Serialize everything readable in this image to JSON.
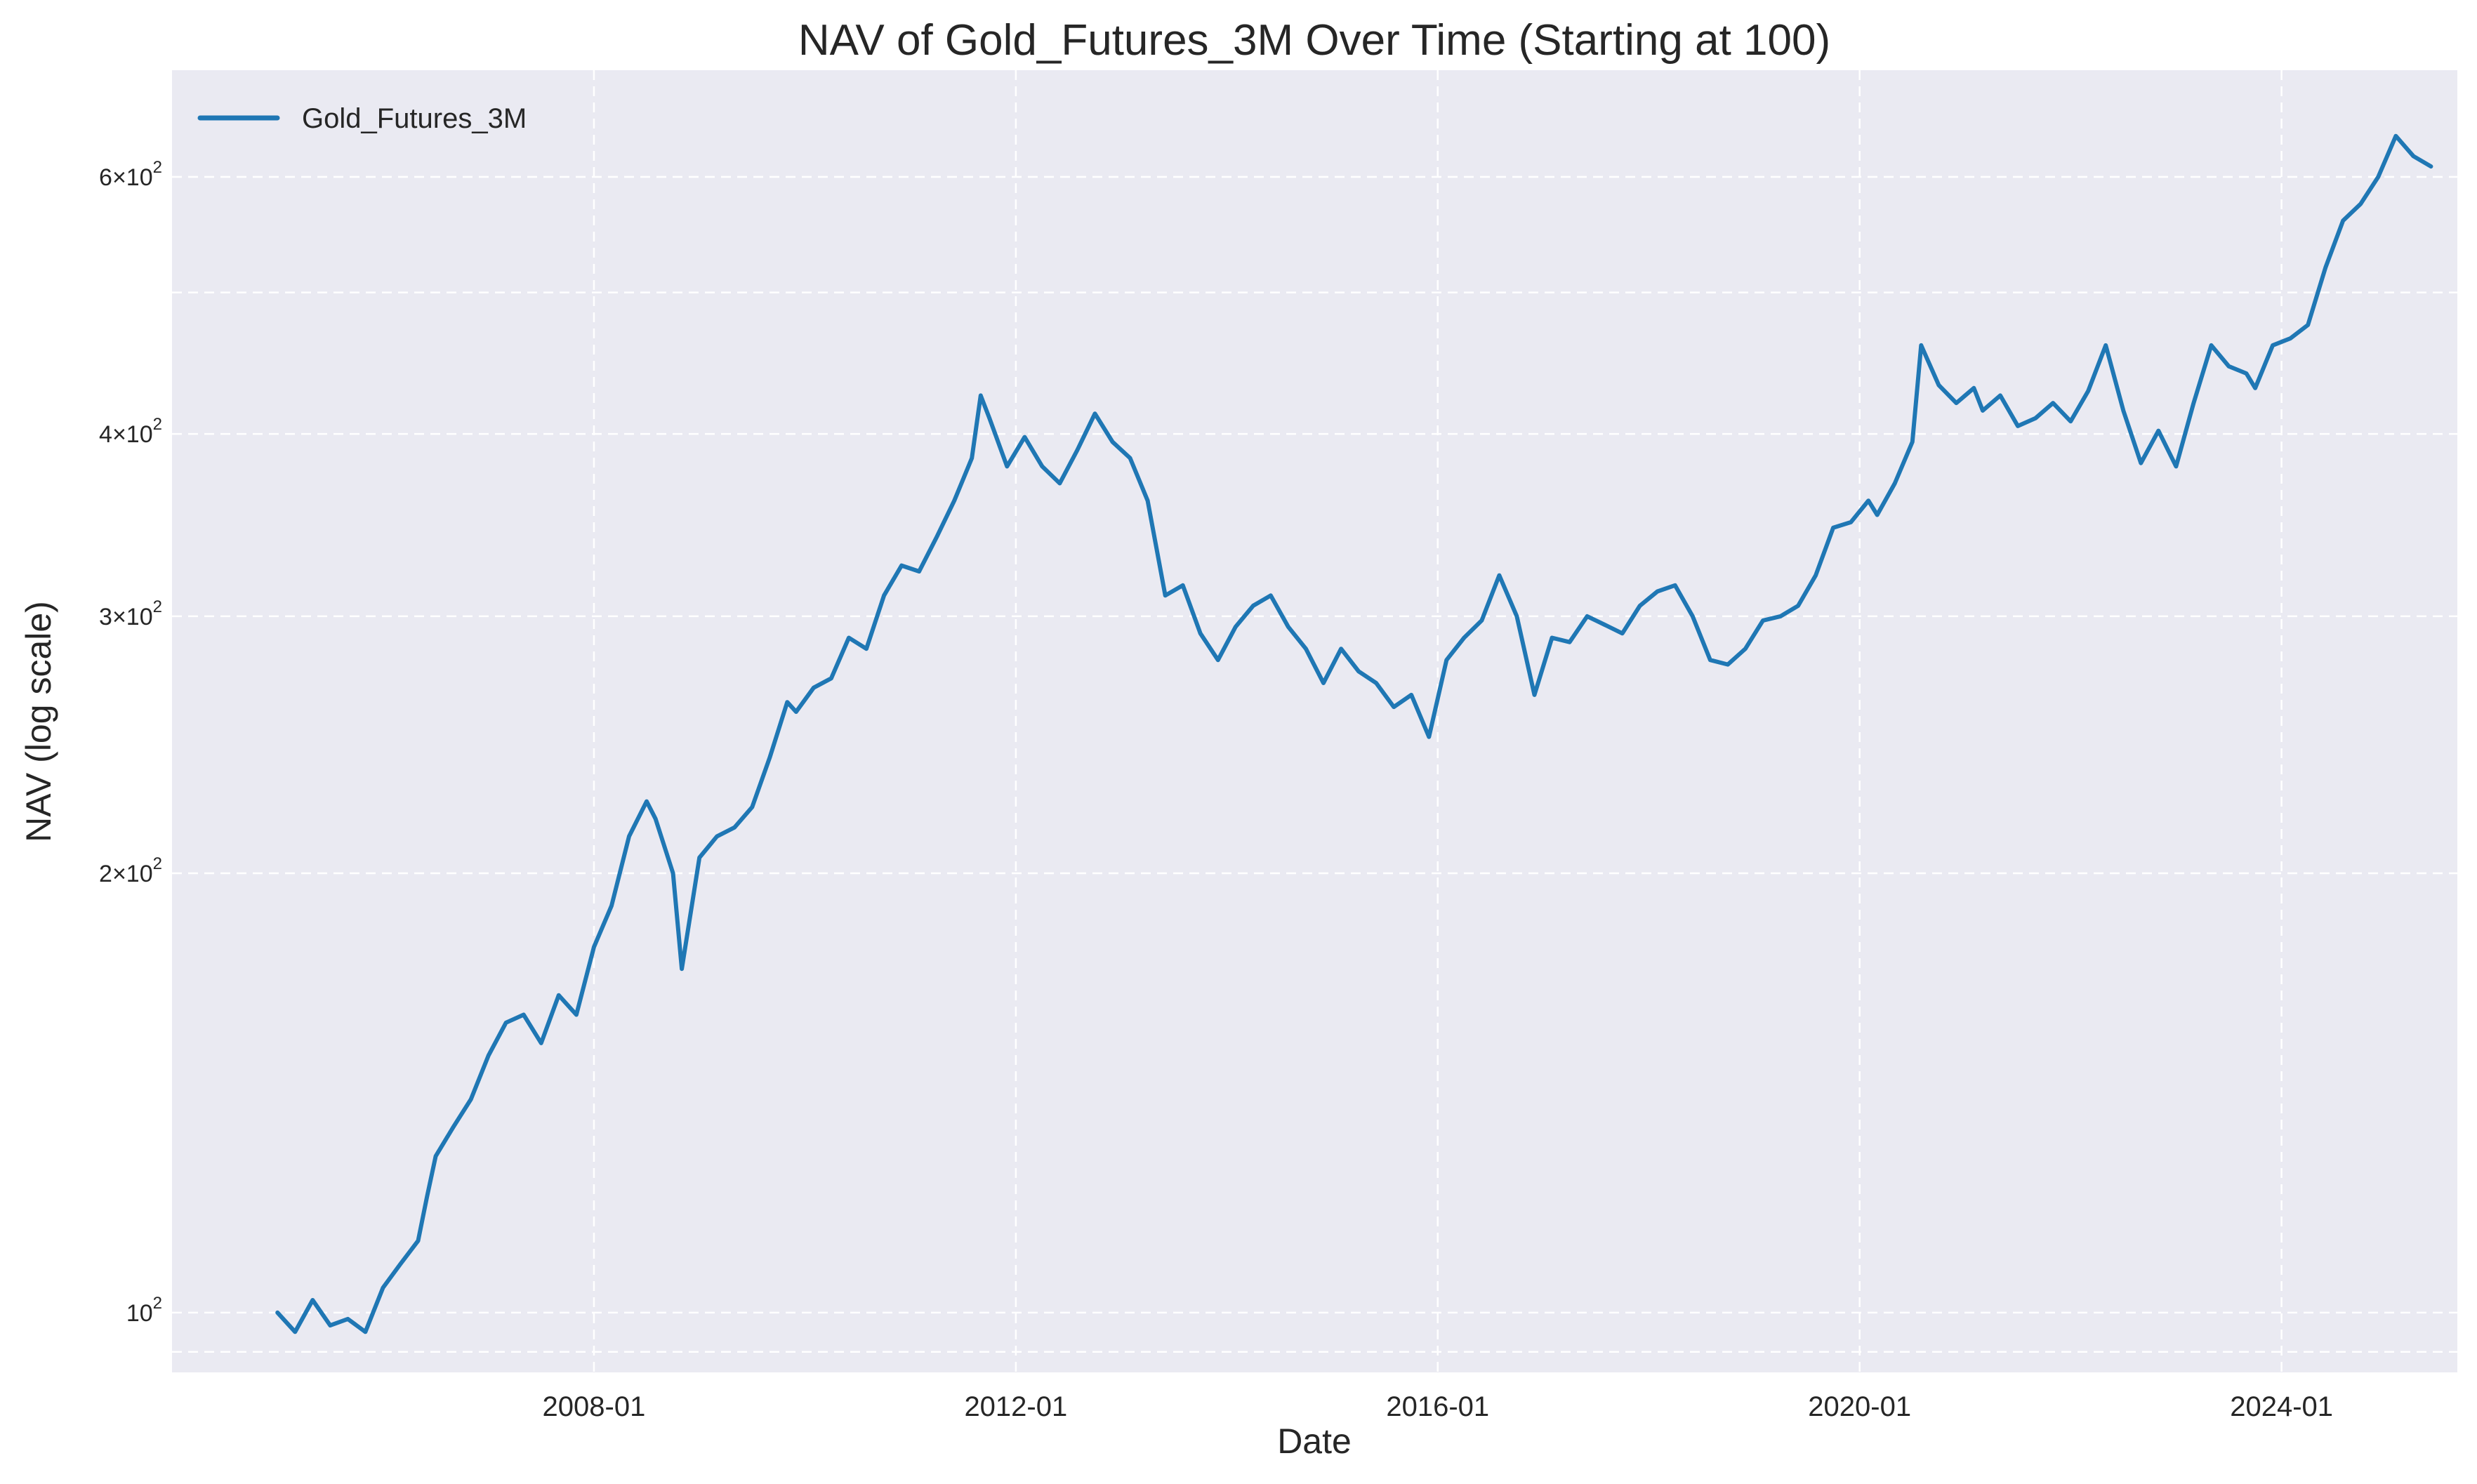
{
  "chart_data": {
    "type": "line",
    "title": "NAV of Gold_Futures_3M Over Time (Starting at 100)",
    "xlabel": "Date",
    "ylabel": "NAV (log scale)",
    "y_scale": "log",
    "ylim": [
      91,
      710
    ],
    "xlim": [
      "2004-01-01",
      "2025-09-01"
    ],
    "grid": true,
    "legend_position": "top-left",
    "x_ticks": [
      "2008-01",
      "2012-01",
      "2016-01",
      "2020-01",
      "2024-01"
    ],
    "y_ticks": [
      {
        "value": 100,
        "base": "10",
        "exp": "2"
      },
      {
        "value": 200,
        "base": "2×10",
        "exp": "2"
      },
      {
        "value": 300,
        "base": "3×10",
        "exp": "2"
      },
      {
        "value": 400,
        "base": "4×10",
        "exp": "2"
      },
      {
        "value": 600,
        "base": "6×10",
        "exp": "2"
      }
    ],
    "y_minor_gridlines": [
      500,
      94
    ],
    "colors": {
      "line": "#1f77b4",
      "plot_background": "#eaeaf2",
      "grid": "#ffffff",
      "text": "#262626"
    },
    "series": [
      {
        "name": "Gold_Futures_3M",
        "x": [
          "2005-01",
          "2005-03",
          "2005-05",
          "2005-07",
          "2005-09",
          "2005-11",
          "2006-01",
          "2006-03",
          "2006-05",
          "2006-06",
          "2006-07",
          "2006-09",
          "2006-11",
          "2007-01",
          "2007-03",
          "2007-05",
          "2007-07",
          "2007-09",
          "2007-11",
          "2008-01",
          "2008-03",
          "2008-05",
          "2008-07",
          "2008-08",
          "2008-10",
          "2008-11",
          "2009-01",
          "2009-03",
          "2009-05",
          "2009-07",
          "2009-09",
          "2009-11",
          "2009-12",
          "2010-02",
          "2010-04",
          "2010-06",
          "2010-08",
          "2010-10",
          "2010-12",
          "2011-02",
          "2011-04",
          "2011-06",
          "2011-08",
          "2011-09",
          "2011-10",
          "2011-12",
          "2012-02",
          "2012-04",
          "2012-06",
          "2012-08",
          "2012-10",
          "2012-12",
          "2013-02",
          "2013-04",
          "2013-06",
          "2013-08",
          "2013-10",
          "2013-12",
          "2014-02",
          "2014-04",
          "2014-06",
          "2014-08",
          "2014-10",
          "2014-12",
          "2015-02",
          "2015-04",
          "2015-06",
          "2015-08",
          "2015-10",
          "2015-12",
          "2016-02",
          "2016-04",
          "2016-06",
          "2016-08",
          "2016-10",
          "2016-12",
          "2017-02",
          "2017-04",
          "2017-06",
          "2017-08",
          "2017-10",
          "2017-12",
          "2018-02",
          "2018-04",
          "2018-06",
          "2018-08",
          "2018-10",
          "2018-12",
          "2019-02",
          "2019-04",
          "2019-06",
          "2019-08",
          "2019-10",
          "2019-12",
          "2020-02",
          "2020-03",
          "2020-05",
          "2020-07",
          "2020-08",
          "2020-10",
          "2020-12",
          "2021-02",
          "2021-03",
          "2021-05",
          "2021-07",
          "2021-09",
          "2021-11",
          "2022-01",
          "2022-03",
          "2022-05",
          "2022-07",
          "2022-09",
          "2022-11",
          "2023-01",
          "2023-03",
          "2023-05",
          "2023-07",
          "2023-09",
          "2023-10",
          "2023-12",
          "2024-02",
          "2024-04",
          "2024-06",
          "2024-08",
          "2024-10",
          "2024-12",
          "2025-02",
          "2025-04",
          "2025-06"
        ],
        "values": [
          100,
          97,
          102,
          98,
          99,
          97,
          104,
          108,
          112,
          120,
          128,
          134,
          140,
          150,
          158,
          160,
          153,
          165,
          160,
          178,
          190,
          212,
          224,
          218,
          200,
          172,
          205,
          212,
          215,
          222,
          240,
          262,
          258,
          268,
          272,
          290,
          285,
          310,
          325,
          322,
          340,
          360,
          385,
          425,
          410,
          380,
          398,
          380,
          370,
          390,
          413,
          395,
          385,
          360,
          310,
          315,
          292,
          280,
          295,
          305,
          310,
          295,
          285,
          270,
          285,
          275,
          270,
          260,
          265,
          248,
          280,
          290,
          298,
          320,
          300,
          265,
          290,
          288,
          300,
          296,
          292,
          305,
          312,
          315,
          300,
          280,
          278,
          285,
          298,
          300,
          305,
          320,
          345,
          348,
          360,
          352,
          370,
          395,
          460,
          432,
          420,
          430,
          415,
          425,
          405,
          410,
          420,
          408,
          428,
          460,
          415,
          382,
          402,
          380,
          420,
          460,
          445,
          440,
          430,
          460,
          465,
          475,
          520,
          560,
          575,
          600,
          640,
          620,
          610
        ]
      }
    ]
  }
}
